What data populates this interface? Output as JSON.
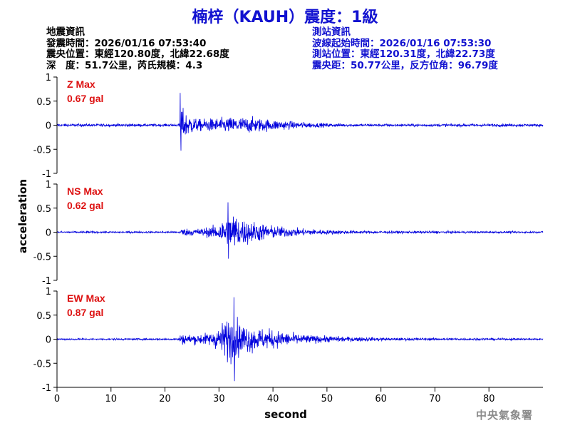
{
  "title": "楠梓（KAUH）震度：1級",
  "earthquake_info": {
    "heading": "地震資訊",
    "origin_time": "發震時間：2026/01/16 07:53:40",
    "epicenter": "震央位置：東經120.80度，北緯22.68度",
    "depth_magnitude": "深　度：51.7公里，芮氏規模：4.3"
  },
  "station_info": {
    "heading": "測站資訊",
    "wave_start": "波線起始時間：2026/01/16 07:53:30",
    "station_location": "測站位置：東經120.31度，北緯22.73度",
    "distance_azimuth": "震央距：50.77公里，反方位角：96.79度"
  },
  "credit": "中央氣象署",
  "chart_data": {
    "type": "line",
    "xlabel": "second",
    "ylabel": "acceleration",
    "xlim": [
      0,
      90
    ],
    "xticks": [
      0,
      10,
      20,
      30,
      40,
      50,
      60,
      70,
      80
    ],
    "ylim": [
      -1,
      1
    ],
    "yticks": [
      1,
      0.5,
      0,
      -0.5,
      -1
    ],
    "ytick_labels": [
      "1",
      "0.5",
      "0",
      "-0.5",
      "-1"
    ],
    "line_color": "#0000dd",
    "label_color": "#dd1111",
    "panels": [
      {
        "component": "Z",
        "max_label": "Z Max",
        "max_value": "0.67 gal",
        "peak": 0.67,
        "min": -0.53,
        "p_arrival": 22.8,
        "envelope": [
          [
            0,
            0.03
          ],
          [
            22.7,
            0.03
          ],
          [
            22.8,
            0.55
          ],
          [
            23.5,
            0.3
          ],
          [
            26,
            0.13
          ],
          [
            29,
            0.15
          ],
          [
            31,
            0.16
          ],
          [
            33,
            0.18
          ],
          [
            36,
            0.17
          ],
          [
            40,
            0.12
          ],
          [
            44,
            0.08
          ],
          [
            48,
            0.05
          ],
          [
            55,
            0.03
          ],
          [
            90,
            0.03
          ]
        ]
      },
      {
        "component": "NS",
        "max_label": "NS Max",
        "max_value": "0.62 gal",
        "peak": 0.62,
        "min": -0.55,
        "p_arrival": 22.8,
        "envelope": [
          [
            0,
            0.02
          ],
          [
            22.7,
            0.02
          ],
          [
            22.8,
            0.08
          ],
          [
            26,
            0.08
          ],
          [
            29,
            0.13
          ],
          [
            31,
            0.3
          ],
          [
            32.5,
            0.45
          ],
          [
            34,
            0.3
          ],
          [
            37,
            0.22
          ],
          [
            40,
            0.14
          ],
          [
            45,
            0.08
          ],
          [
            50,
            0.05
          ],
          [
            58,
            0.03
          ],
          [
            90,
            0.02
          ]
        ]
      },
      {
        "component": "EW",
        "max_label": "EW Max",
        "max_value": "0.87 gal",
        "peak": 0.87,
        "min": -0.87,
        "p_arrival": 22.8,
        "envelope": [
          [
            0,
            0.02
          ],
          [
            22.7,
            0.02
          ],
          [
            22.8,
            0.12
          ],
          [
            25,
            0.1
          ],
          [
            29,
            0.15
          ],
          [
            31,
            0.4
          ],
          [
            32.5,
            0.55
          ],
          [
            34,
            0.35
          ],
          [
            37,
            0.25
          ],
          [
            40,
            0.2
          ],
          [
            44,
            0.12
          ],
          [
            48,
            0.08
          ],
          [
            55,
            0.05
          ],
          [
            62,
            0.03
          ],
          [
            90,
            0.02
          ]
        ]
      }
    ]
  }
}
